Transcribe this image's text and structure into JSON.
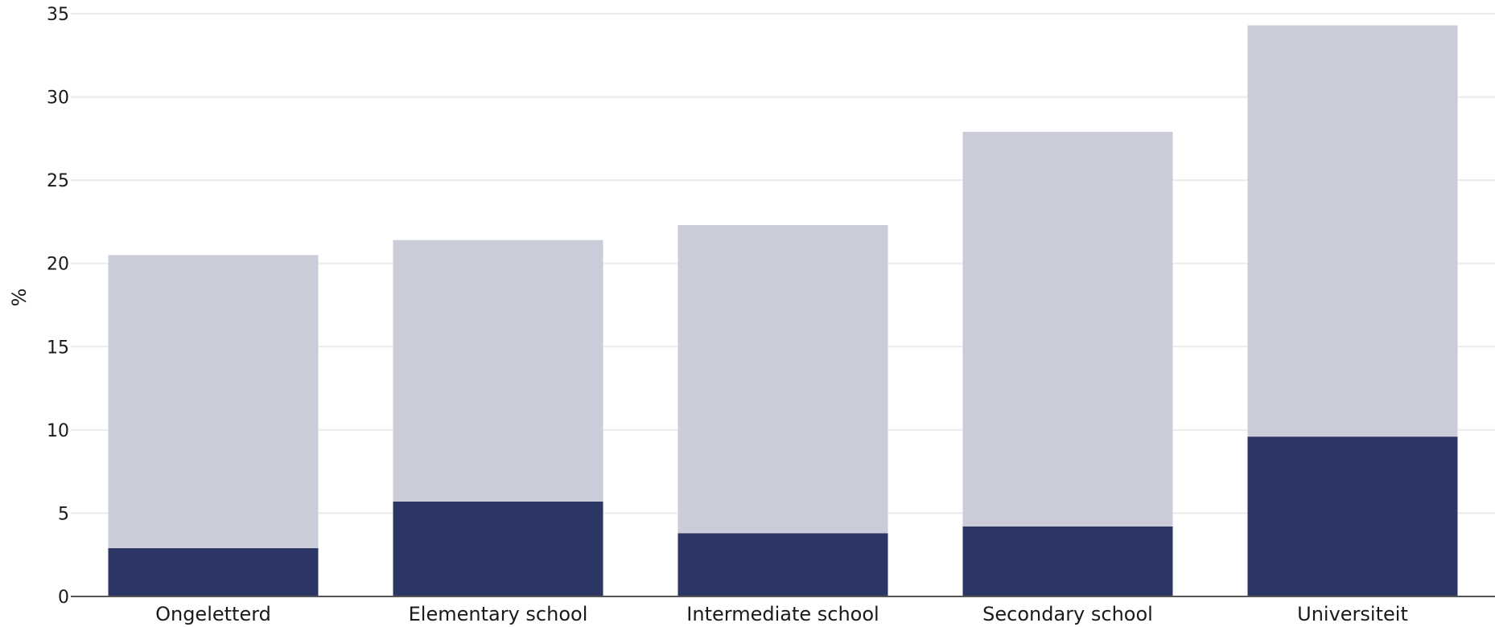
{
  "chart_data": {
    "type": "bar",
    "stacked": true,
    "categories": [
      "Ongeletterd",
      "Elementary school",
      "Intermediate school",
      "Secondary school",
      "Universiteit"
    ],
    "series": [
      {
        "values": [
          2.9,
          5.7,
          3.8,
          4.2,
          9.6
        ],
        "color": "#2b3665"
      },
      {
        "values": [
          17.6,
          15.7,
          18.5,
          23.7,
          24.7
        ],
        "color": "#cacdd9"
      }
    ],
    "totals": [
      20.5,
      21.4,
      22.3,
      27.9,
      34.3
    ],
    "ylabel": "%",
    "ylim": [
      0,
      35
    ],
    "yticks": [
      0,
      5,
      10,
      15,
      20,
      25,
      30,
      35
    ],
    "grid": true
  }
}
